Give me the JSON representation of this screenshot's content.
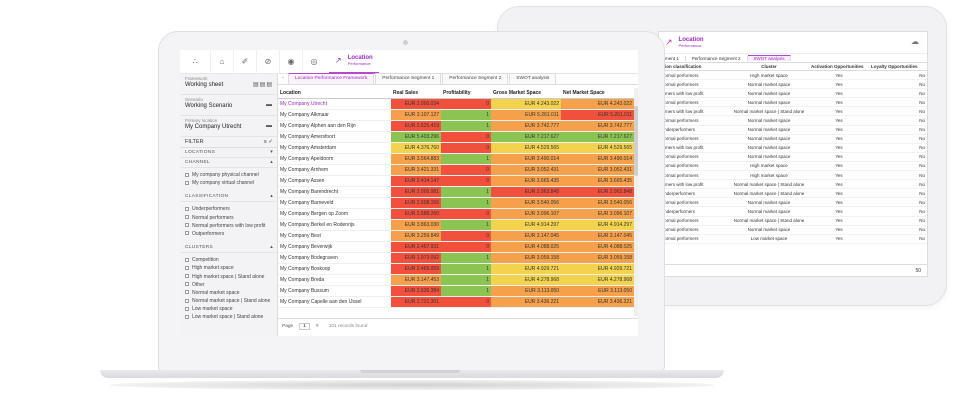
{
  "back_screen": {
    "title": "Location",
    "subtitle": "Performance",
    "tabs": [
      "ment 1",
      "Performance Segment 2",
      "SWOT analysis"
    ],
    "columns": [
      "ation classification",
      "Cluster",
      "Activation Opportunities",
      "Loyalty Opportunities"
    ],
    "rows": [
      [
        "Normal performers",
        "High market space",
        "Yes",
        "No"
      ],
      [
        "Normal performers",
        "Normal market space",
        "Yes",
        "No"
      ],
      [
        "ormers with low profit",
        "Normal market space",
        "Yes",
        "No"
      ],
      [
        "Normal performers",
        "Normal market space",
        "Yes",
        "No"
      ],
      [
        "ormers with low profit",
        "Normal market space | Stand alone",
        "Yes",
        "No"
      ],
      [
        "Normal performers",
        "Normal market space",
        "Yes",
        "No"
      ],
      [
        "Underperformers",
        "Normal market space",
        "Yes",
        "No"
      ],
      [
        "Normal performers",
        "Normal market space",
        "Yes",
        "No"
      ],
      [
        "ormers with low profit",
        "Normal market space",
        "Yes",
        "No"
      ],
      [
        "Normal performers",
        "Normal market space",
        "Yes",
        "No"
      ],
      [
        "Normal performers",
        "High market space",
        "Yes",
        "No"
      ],
      [
        "Normal performers",
        "High market space",
        "Yes",
        "No"
      ],
      [
        "ormers with low profit",
        "Normal market space | Stand alone",
        "Yes",
        "No"
      ],
      [
        "Underperformers",
        "Normal market space | Stand alone",
        "Yes",
        "No"
      ],
      [
        "Normal performers",
        "Normal market space",
        "Yes",
        "No"
      ],
      [
        "Underperformers",
        "Normal market space",
        "Yes",
        "No"
      ],
      [
        "Normal performers",
        "Normal market space | Stand alone",
        "Yes",
        "No"
      ],
      [
        "Normal performers",
        "Normal market space",
        "Yes",
        "No"
      ],
      [
        "Normal performers",
        "Low market space",
        "Yes",
        "No"
      ]
    ],
    "footer": "50"
  },
  "topbar": {
    "active_title": "Location",
    "active_subtitle": "Performance"
  },
  "left": {
    "framework_label": "Framework",
    "framework_value": "Working sheet",
    "scenario_label": "Scenario",
    "scenario_value": "Working Scenario",
    "primary_label": "Primary location",
    "primary_value": "My Company Utrecht",
    "filter_label": "FILTER",
    "sections": {
      "locations": "LOCATIONS",
      "channel": "CHANNEL",
      "classification": "CLASSIFICATION",
      "clusters": "CLUSTERS"
    },
    "channel_options": [
      "My company physical channel",
      "My company virtual channel"
    ],
    "classification_options": [
      "Underperformers",
      "Normal performers",
      "Normal performers with low profit",
      "Outperformers"
    ],
    "cluster_options": [
      "Competition",
      "High market space",
      "High market space | Stand alone",
      "Other",
      "Normal market space",
      "Normal market space | Stand alone",
      "Low market space",
      "Low market space | Stand alone"
    ]
  },
  "tabs": [
    "Location Performance Framework",
    "Performance Segment 1",
    "Performance Segment 2",
    "SWOT analysis"
  ],
  "columns": [
    "Location",
    "Real Sales",
    "Profitability",
    "Gross Market Space",
    "Net Market Space"
  ],
  "colors": {
    "accent": "#9b2bc4",
    "red": "#f0503c",
    "orange": "#f5a04a",
    "yellow": "#f3d24e",
    "green": "#8cc454",
    "green_dark": "#6fb63c"
  },
  "rows": [
    {
      "name": "My Company Utrecht",
      "sales": "EUR 2.000.034",
      "profit": "0",
      "gross": "EUR 4.243.022",
      "net": "EUR 4.243.022",
      "c": [
        "red",
        "red",
        "yellow",
        "orange"
      ]
    },
    {
      "name": "My Company Alkmaar",
      "sales": "EUR 3.107.127",
      "profit": "1",
      "gross": "EUR 5.261.011",
      "net": "EUR 5.261.011",
      "c": [
        "orange",
        "green",
        "orange",
        "red"
      ]
    },
    {
      "name": "My Company Alphen aan den Rijn",
      "sales": "EUR 2.625.419",
      "profit": "1",
      "gross": "EUR 3.742.777",
      "net": "EUR 3.742.777",
      "c": [
        "red",
        "green",
        "orange",
        "orange"
      ]
    },
    {
      "name": "My Company Amersfoort",
      "sales": "EUR 5.403.296",
      "profit": "0",
      "gross": "EUR 7.217.627",
      "net": "EUR 7.217.627",
      "c": [
        "green",
        "red",
        "green",
        "green"
      ]
    },
    {
      "name": "My Company Amsterdam",
      "sales": "EUR 4.376.760",
      "profit": "0",
      "gross": "EUR 4.529.565",
      "net": "EUR 4.529.565",
      "c": [
        "yellow",
        "red",
        "yellow",
        "yellow"
      ]
    },
    {
      "name": "My Company Apeldoorn",
      "sales": "EUR 3.564.883",
      "profit": "1",
      "gross": "EUR 3.490.014",
      "net": "EUR 3.490.014",
      "c": [
        "orange",
        "green",
        "orange",
        "orange"
      ]
    },
    {
      "name": "My Company Arnhem",
      "sales": "EUR 3.421.331",
      "profit": "0",
      "gross": "EUR 3.052.431",
      "net": "EUR 3.052.431",
      "c": [
        "orange",
        "red",
        "orange",
        "orange"
      ]
    },
    {
      "name": "My Company Assen",
      "sales": "EUR 2.414.147",
      "profit": "0",
      "gross": "EUR 3.665.435",
      "net": "EUR 3.665.435",
      "c": [
        "red",
        "red",
        "orange",
        "orange"
      ]
    },
    {
      "name": "My Company Barendrecht",
      "sales": "EUR 2.000.981",
      "profit": "1",
      "gross": "EUR 2.963.848",
      "net": "EUR 2.963.848",
      "c": [
        "red",
        "green",
        "red",
        "red"
      ]
    },
    {
      "name": "My Company Barneveld",
      "sales": "EUR 2.608.156",
      "profit": "1",
      "gross": "EUR 3.540.056",
      "net": "EUR 3.540.056",
      "c": [
        "red",
        "green",
        "orange",
        "orange"
      ]
    },
    {
      "name": "My Company Bergen op Zoom",
      "sales": "EUR 2.588.260",
      "profit": "0",
      "gross": "EUR 3.096.107",
      "net": "EUR 3.096.107",
      "c": [
        "red",
        "red",
        "orange",
        "orange"
      ]
    },
    {
      "name": "My Company Berkel en Rodenrijs",
      "sales": "EUR 3.863.030",
      "profit": "1",
      "gross": "EUR 4.914.297",
      "net": "EUR 4.914.297",
      "c": [
        "orange",
        "green",
        "yellow",
        "yellow"
      ]
    },
    {
      "name": "My Company Best",
      "sales": "EUR 3.259.849",
      "profit": "0",
      "gross": "EUR 3.147.045",
      "net": "EUR 3.147.045",
      "c": [
        "orange",
        "red",
        "orange",
        "orange"
      ]
    },
    {
      "name": "My Company Beverwijk",
      "sales": "EUR 2.467.931",
      "profit": "0",
      "gross": "EUR 4.088.025",
      "net": "EUR 4.088.025",
      "c": [
        "red",
        "red",
        "orange",
        "orange"
      ]
    },
    {
      "name": "My Company Bodegraven",
      "sales": "EUR 1.973.092",
      "profit": "1",
      "gross": "EUR 3.059.158",
      "net": "EUR 3.059.158",
      "c": [
        "red",
        "green",
        "orange",
        "orange"
      ]
    },
    {
      "name": "My Company Boskoop",
      "sales": "EUR 2.465.059",
      "profit": "1",
      "gross": "EUR 4.929.721",
      "net": "EUR 4.929.721",
      "c": [
        "red",
        "green",
        "yellow",
        "yellow"
      ]
    },
    {
      "name": "My Company Breda",
      "sales": "EUR 3.147.453",
      "profit": "1",
      "gross": "EUR 4.278.968",
      "net": "EUR 4.278.968",
      "c": [
        "orange",
        "green",
        "yellow",
        "yellow"
      ]
    },
    {
      "name": "My Company Bussum",
      "sales": "EUR 2.636.384",
      "profit": "1",
      "gross": "EUR 3.113.050",
      "net": "EUR 3.113.050",
      "c": [
        "red",
        "green",
        "orange",
        "orange"
      ]
    },
    {
      "name": "My Company Capelle aan den IJssel",
      "sales": "EUR 2.721.301",
      "profit": "0",
      "gross": "EUR 3.436.221",
      "net": "EUR 3.436.221",
      "c": [
        "red",
        "red",
        "orange",
        "orange"
      ]
    }
  ],
  "pager": {
    "page_label": "Page",
    "page_value": "1",
    "records": "101 records found"
  }
}
